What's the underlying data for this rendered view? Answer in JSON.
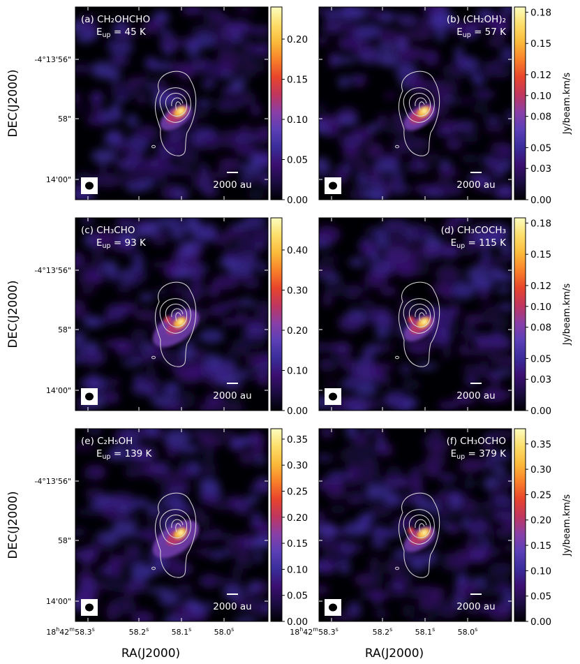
{
  "figure": {
    "ylabel": "DEC(J2000)",
    "xlabel": "RA(J2000)",
    "colorbar_label": "Jy/beam.km/s",
    "scalebar_label": "2000 au",
    "ytick_labels": [
      "-4°13'56\"",
      "58\"",
      "14'00\""
    ],
    "xtick_labels": [
      {
        "h": "18",
        "m": "42",
        "s": "58.3",
        "sup_h": "h",
        "sup_m": "m",
        "sup_s": "s"
      },
      {
        "s": "58.2",
        "sup_s": "s"
      },
      {
        "s": "58.1",
        "sup_s": "s"
      },
      {
        "s": "58.0",
        "sup_s": "s"
      }
    ],
    "colormap": [
      "#000004",
      "#1b0c41",
      "#3b0f70",
      "#3a2d9a",
      "#5b3fb6",
      "#8a3fa6",
      "#c0365e",
      "#e8452b",
      "#f9812a",
      "#fbbb3a",
      "#fcde6a",
      "#fcfdbf"
    ]
  },
  "chart_data": [
    {
      "type": "heatmap",
      "panel": "(a)",
      "species": "CH₂OHCHO",
      "eup": "45 K",
      "eup_prefix": "E",
      "eup_sub": "up",
      "cbar_ticks": [
        0.0,
        0.05,
        0.1,
        0.15,
        0.2
      ],
      "cbar_tick_labels": [
        "0.00",
        "0.05",
        "0.10",
        "0.15",
        "0.20"
      ],
      "vmax": 0.24,
      "peak": 0.23
    },
    {
      "type": "heatmap",
      "panel": "(b)",
      "species": "(CH₂OH)₂",
      "eup": "57 K",
      "eup_prefix": "E",
      "eup_sub": "up",
      "cbar_ticks": [
        0.0,
        0.03,
        0.05,
        0.08,
        0.1,
        0.12,
        0.15,
        0.18
      ],
      "cbar_tick_labels": [
        "0.00",
        "0.03",
        "0.05",
        "0.08",
        "0.10",
        "0.12",
        "0.15",
        "0.18"
      ],
      "vmax": 0.185,
      "peak": 0.18
    },
    {
      "type": "heatmap",
      "panel": "(c)",
      "species": "CH₃CHO",
      "eup": "93 K",
      "eup_prefix": "E",
      "eup_sub": "up",
      "cbar_ticks": [
        0.0,
        0.1,
        0.2,
        0.3,
        0.4
      ],
      "cbar_tick_labels": [
        "0.00",
        "0.10",
        "0.20",
        "0.30",
        "0.40"
      ],
      "vmax": 0.48,
      "peak": 0.46
    },
    {
      "type": "heatmap",
      "panel": "(d)",
      "species": "CH₃COCH₃",
      "eup": "115 K",
      "eup_prefix": "E",
      "eup_sub": "up",
      "cbar_ticks": [
        0.0,
        0.03,
        0.05,
        0.08,
        0.1,
        0.12,
        0.15,
        0.18
      ],
      "cbar_tick_labels": [
        "0.00",
        "0.03",
        "0.05",
        "0.08",
        "0.10",
        "0.12",
        "0.15",
        "0.18"
      ],
      "vmax": 0.185,
      "peak": 0.18
    },
    {
      "type": "heatmap",
      "panel": "(e)",
      "species": "C₂H₅OH",
      "eup": "139 K",
      "eup_prefix": "E",
      "eup_sub": "up",
      "cbar_ticks": [
        0.0,
        0.05,
        0.1,
        0.15,
        0.2,
        0.25,
        0.3,
        0.35
      ],
      "cbar_tick_labels": [
        "0.00",
        "0.05",
        "0.10",
        "0.15",
        "0.20",
        "0.25",
        "0.30",
        "0.35"
      ],
      "vmax": 0.37,
      "peak": 0.36
    },
    {
      "type": "heatmap",
      "panel": "(f)",
      "species": "CH₃OCHO",
      "eup": "379 K",
      "eup_prefix": "E",
      "eup_sub": "up",
      "cbar_ticks": [
        0.0,
        0.05,
        0.1,
        0.15,
        0.2,
        0.25,
        0.3,
        0.35
      ],
      "cbar_tick_labels": [
        "0.00",
        "0.05",
        "0.10",
        "0.15",
        "0.20",
        "0.25",
        "0.30",
        "0.35"
      ],
      "vmax": 0.38,
      "peak": 0.37
    }
  ]
}
